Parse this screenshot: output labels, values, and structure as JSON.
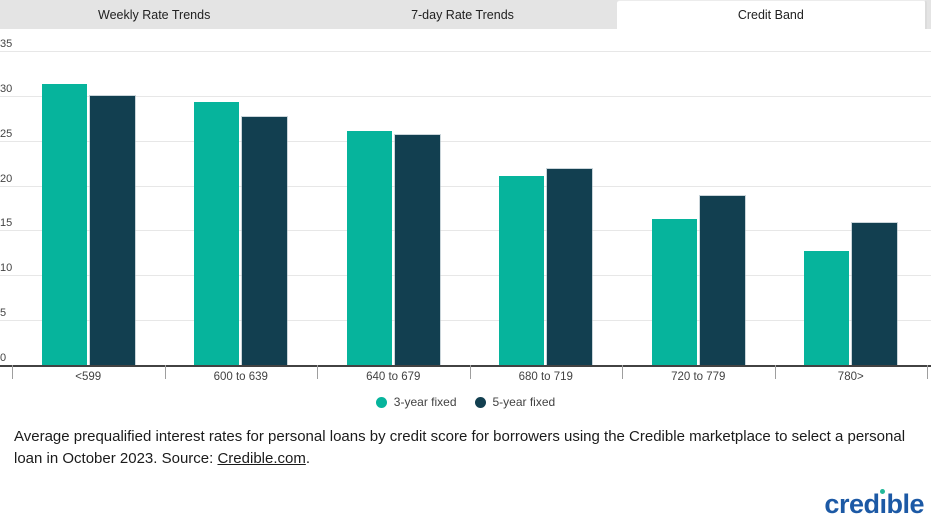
{
  "tabs": [
    {
      "label": "Weekly Rate Trends",
      "active": false
    },
    {
      "label": "7-day Rate Trends",
      "active": false
    },
    {
      "label": "Credit Band",
      "active": true
    }
  ],
  "chart_data": {
    "type": "bar",
    "title": "",
    "xlabel": "",
    "ylabel": "",
    "categories": [
      "<599",
      "600 to 639",
      "640 to 679",
      "680 to 719",
      "720 to 779",
      "780>"
    ],
    "series": [
      {
        "name": "3-year fixed",
        "color": "#06b49c",
        "values": [
          31.3,
          29.3,
          26.1,
          21.1,
          16.3,
          12.7
        ]
      },
      {
        "name": "5-year fixed",
        "color": "#123f50",
        "values": [
          30.0,
          27.6,
          25.6,
          21.8,
          18.8,
          15.8
        ]
      }
    ],
    "ylim": [
      0,
      35
    ],
    "yticks": [
      0,
      5,
      10,
      15,
      20,
      25,
      30,
      35
    ],
    "grid": true,
    "legend_position": "bottom"
  },
  "caption": {
    "text": "Average prequalified interest rates for personal loans by credit score for borrowers using the Credible marketplace to select a personal loan in October 2023. Source: ",
    "link_text": "Credible.com",
    "suffix": "."
  },
  "logo": {
    "text": "credible",
    "color": "#1c59a5",
    "dot_color": "#21b899"
  },
  "colors": {
    "series_3yr": "#06b49c",
    "series_5yr": "#123f50",
    "tab_bar_bg": "#e4e4e4",
    "active_tab_bg": "#ffffff",
    "gridline": "#e7e7e7",
    "axis": "#424242"
  }
}
